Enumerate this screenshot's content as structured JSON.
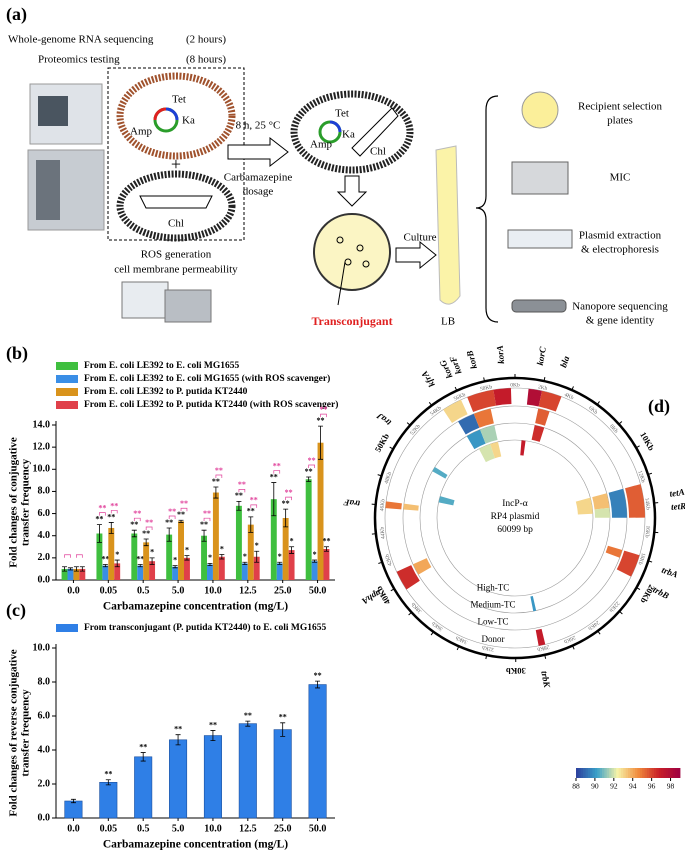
{
  "panel_a": {
    "label": "(a)",
    "texts": [
      "Whole-genome RNA sequencing",
      "(2 hours)",
      "Proteomics testing",
      "(8 hours)",
      "Tet",
      "Ka",
      "Amp",
      "+",
      "Chl",
      "ROS generation",
      "cell membrane permeability",
      "8 h, 25 °C",
      "Carbamazepine",
      "dosage",
      "Tet",
      "Ka",
      "Amp",
      "Chl",
      "Culture",
      "Transconjugant",
      "LB",
      "Recipient selection",
      "plates",
      "MIC",
      "Plasmid extraction",
      "& electrophoresis",
      "Nanopore sequencing",
      "& gene identity"
    ]
  },
  "chart_data": [
    {
      "type": "bar",
      "panel_label": "(b)",
      "categories": [
        "0.0",
        "0.05",
        "0.5",
        "5.0",
        "10.0",
        "12.5",
        "25.0",
        "50.0"
      ],
      "xlabel": "Carbamazepine concentration (mg/L)",
      "ylabel": [
        "Fold changes of conjugative",
        "transfer frequency"
      ],
      "ylim": [
        0,
        14
      ],
      "yticks": [
        {
          "value": 0,
          "label": "0.0"
        },
        {
          "value": 2,
          "label": "2.0"
        },
        {
          "value": 4,
          "label": "4.0"
        },
        {
          "value": 6,
          "label": "6.0"
        },
        {
          "value": 8,
          "label": "8.0"
        },
        {
          "value": 10,
          "label": "10.0"
        },
        {
          "value": 12,
          "label": "12.0"
        },
        {
          "value": 14,
          "label": "14.0"
        }
      ],
      "series": [
        {
          "name": "From E. coli LE392 to E. coli MG1655",
          "color": "#3fbf3f",
          "values": [
            1.0,
            4.2,
            4.2,
            4.1,
            4.0,
            6.7,
            7.3,
            9.1
          ],
          "errors": [
            0.2,
            0.8,
            0.3,
            0.6,
            0.5,
            0.4,
            1.5,
            0.2
          ],
          "sig": [
            null,
            "**",
            "**",
            "**",
            "**",
            "**",
            "**",
            "**"
          ]
        },
        {
          "name": "From E. coli LE392 to E. coli MG1655 (with ROS scavenger)",
          "color": "#3a8ee6",
          "values": [
            1.0,
            1.3,
            1.3,
            1.2,
            1.4,
            1.5,
            1.5,
            1.7
          ],
          "errors": [
            0.1,
            0.1,
            0.1,
            0.1,
            0.1,
            0.1,
            0.1,
            0.1
          ],
          "sig": [
            null,
            "**",
            "**",
            "*",
            "*",
            "*",
            "*",
            "*"
          ]
        },
        {
          "name": "From E. coli LE392 to P. putida KT2440",
          "color": "#d9931c",
          "values": [
            1.0,
            4.7,
            3.4,
            5.3,
            7.9,
            5.0,
            5.6,
            12.4
          ],
          "errors": [
            0.2,
            0.5,
            0.3,
            0.1,
            0.5,
            0.7,
            0.8,
            1.5
          ],
          "sig": [
            null,
            "**",
            "**",
            "**",
            "**",
            "**",
            "**",
            "**"
          ]
        },
        {
          "name": "From E. coli LE392 to P. putida KT2440 (with ROS scavenger)",
          "color": "#e0404a",
          "values": [
            1.0,
            1.5,
            1.7,
            2.0,
            2.1,
            2.1,
            2.7,
            2.8
          ],
          "errors": [
            0.2,
            0.3,
            0.3,
            0.2,
            0.2,
            0.5,
            0.3,
            0.2
          ],
          "sig": [
            null,
            "*",
            "*",
            "*",
            "*",
            "*",
            "*",
            "**"
          ]
        }
      ],
      "comparisons": [
        {
          "series": [
            0,
            1
          ],
          "labels": [
            null,
            "**",
            "**",
            "**",
            "**",
            "**",
            "**",
            "**"
          ]
        },
        {
          "series": [
            2,
            3
          ],
          "labels": [
            null,
            "**",
            "**",
            "**",
            "**",
            "**",
            "**",
            "**"
          ]
        }
      ],
      "comparison_color": "#e0409a"
    },
    {
      "type": "bar",
      "panel_label": "(c)",
      "categories": [
        "0.0",
        "0.05",
        "0.5",
        "5.0",
        "10.0",
        "12.5",
        "25.0",
        "50.0"
      ],
      "xlabel": "Carbamazepine concentration (mg/L)",
      "ylabel": [
        "Fold changes of reverse conjugative",
        "transfer frequency"
      ],
      "ylim": [
        0,
        10
      ],
      "yticks": [
        {
          "value": 0,
          "label": "0.0"
        },
        {
          "value": 2,
          "label": "2.0"
        },
        {
          "value": 4,
          "label": "4.0"
        },
        {
          "value": 6,
          "label": "6.0"
        },
        {
          "value": 8,
          "label": "8.0"
        },
        {
          "value": 10,
          "label": "10.0"
        }
      ],
      "series": [
        {
          "name": "From transconjugant (P. putida KT2440) to E. coli MG1655",
          "color": "#2f7fe6",
          "values": [
            1.0,
            2.1,
            3.6,
            4.6,
            4.85,
            5.55,
            5.2,
            7.85
          ],
          "errors": [
            0.1,
            0.15,
            0.25,
            0.3,
            0.3,
            0.15,
            0.4,
            0.2
          ],
          "sig": [
            null,
            "**",
            "**",
            "**",
            "**",
            "**",
            "**",
            "**"
          ]
        }
      ]
    },
    {
      "type": "circos",
      "panel_label": "(d)",
      "center_text": [
        "IncP-α",
        "RP4 plasmid",
        "60099 bp"
      ],
      "total_kb": 60.099,
      "ticks": [
        {
          "value": 0,
          "label": "0Kb"
        },
        {
          "value": 2,
          "label": "2Kb"
        },
        {
          "value": 4,
          "label": "4Kb"
        },
        {
          "value": 6,
          "label": "6Kb"
        },
        {
          "value": 8,
          "label": "8Kb"
        },
        {
          "value": 10,
          "label": "10Kb"
        },
        {
          "value": 12,
          "label": "12Kb"
        },
        {
          "value": 14,
          "label": "14Kb"
        },
        {
          "value": 16,
          "label": "16Kb"
        },
        {
          "value": 18,
          "label": "18Kb"
        },
        {
          "value": 20,
          "label": "20Kb"
        },
        {
          "value": 22,
          "label": "22Kb"
        },
        {
          "value": 24,
          "label": "24Kb"
        },
        {
          "value": 26,
          "label": "26Kb"
        },
        {
          "value": 28,
          "label": "28Kb"
        },
        {
          "value": 30,
          "label": "30Kb"
        },
        {
          "value": 32,
          "label": "32Kb"
        },
        {
          "value": 34,
          "label": "34Kb"
        },
        {
          "value": 36,
          "label": "36Kb"
        },
        {
          "value": 38,
          "label": "38Kb"
        },
        {
          "value": 40,
          "label": "40Kb"
        },
        {
          "value": 42,
          "label": "42Kb"
        },
        {
          "value": 44,
          "label": "44Kb"
        },
        {
          "value": 46,
          "label": "46Kb"
        },
        {
          "value": 48,
          "label": "48Kb"
        },
        {
          "value": 50,
          "label": "50Kb"
        },
        {
          "value": 52,
          "label": "52Kb"
        },
        {
          "value": 54,
          "label": "54Kb"
        },
        {
          "value": 56,
          "label": "56Kb"
        },
        {
          "value": 58,
          "label": "58Kb"
        }
      ],
      "genes": [
        {
          "name": "korA",
          "position": 59.3
        },
        {
          "name": "korB",
          "position": 57.6
        },
        {
          "name": "korF",
          "position": 56.6
        },
        {
          "name": "korG",
          "position": 56.0
        },
        {
          "name": "kfrA",
          "position": 54.8
        },
        {
          "name": "traJ",
          "position": 51.3
        },
        {
          "name": "traF",
          "position": 46.0
        },
        {
          "name": "aphA",
          "position": 40.3
        },
        {
          "name": "trbK",
          "position": 28.3
        },
        {
          "name": "trbB",
          "position": 19.6
        },
        {
          "name": "trbA",
          "position": 18.3
        },
        {
          "name": "tetR",
          "position": 14.4
        },
        {
          "name": "tetA",
          "position": 13.6
        },
        {
          "name": "bla",
          "position": 3.0
        },
        {
          "name": "korC",
          "position": 1.6
        }
      ],
      "tracks": [
        {
          "name": "Donor",
          "segments": [
            {
              "start": 56.5,
              "end": 58.5,
              "value": 96
            },
            {
              "start": 58.5,
              "end": 59.8,
              "value": 97
            },
            {
              "start": 1.0,
              "end": 2.0,
              "value": 98
            },
            {
              "start": 2.0,
              "end": 3.5,
              "value": 96
            },
            {
              "start": 12.5,
              "end": 15.0,
              "value": 95.5
            },
            {
              "start": 17.8,
              "end": 19.5,
              "value": 96
            },
            {
              "start": 27.8,
              "end": 28.3,
              "value": 97
            },
            {
              "start": 39.5,
              "end": 41.0,
              "value": 96.5
            },
            {
              "start": 45.8,
              "end": 46.3,
              "value": 95
            },
            {
              "start": 54.5,
              "end": 56.0,
              "value": 93
            }
          ]
        },
        {
          "name": "Low-TC",
          "segments": [
            {
              "start": 55.0,
              "end": 56.5,
              "value": 89
            },
            {
              "start": 56.5,
              "end": 58.0,
              "value": 95
            },
            {
              "start": 12.5,
              "end": 15.0,
              "value": 89.5
            },
            {
              "start": 17.8,
              "end": 18.5,
              "value": 95
            },
            {
              "start": 2.0,
              "end": 3.0,
              "value": 95.5
            },
            {
              "start": 45.8,
              "end": 46.3,
              "value": 93.5
            },
            {
              "start": 40.0,
              "end": 41.0,
              "value": 94
            }
          ]
        },
        {
          "name": "Medium-TC",
          "segments": [
            {
              "start": 55.0,
              "end": 56.5,
              "value": 90
            },
            {
              "start": 56.5,
              "end": 58.0,
              "value": 91.5
            },
            {
              "start": 12.5,
              "end": 14.0,
              "value": 93.5
            },
            {
              "start": 14.0,
              "end": 15.0,
              "value": 92
            },
            {
              "start": 2.0,
              "end": 3.0,
              "value": 96.5
            },
            {
              "start": 50.0,
              "end": 50.5,
              "value": 90.5
            },
            {
              "start": 27.9,
              "end": 28.2,
              "value": 90
            }
          ]
        },
        {
          "name": "High-TC",
          "segments": [
            {
              "start": 55.5,
              "end": 57.0,
              "value": 92
            },
            {
              "start": 57.0,
              "end": 58.0,
              "value": 93
            },
            {
              "start": 12.5,
              "end": 14.5,
              "value": 93
            },
            {
              "start": 0.8,
              "end": 1.3,
              "value": 97
            },
            {
              "start": 47.0,
              "end": 47.8,
              "value": 90.5
            }
          ]
        }
      ],
      "colorbar": {
        "range": [
          88,
          99
        ],
        "ticks": [
          88,
          90,
          92,
          94,
          96,
          98
        ]
      }
    }
  ]
}
